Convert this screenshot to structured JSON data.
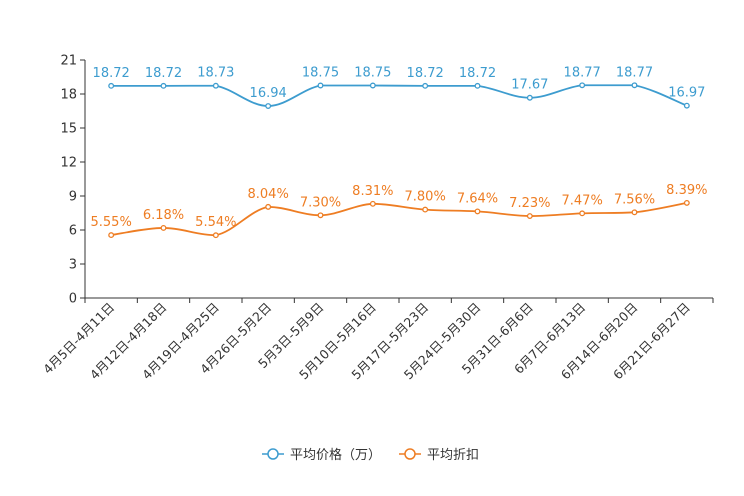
{
  "chart_data": {
    "type": "line",
    "title": "",
    "xlabel": "",
    "ylabel": "",
    "ylim": [
      0,
      21
    ],
    "yticks": [
      0,
      3,
      6,
      9,
      12,
      15,
      18,
      21
    ],
    "grid": false,
    "legend_position": "bottom",
    "categories": [
      "4月5日-4月11日",
      "4月12日-4月18日",
      "4月19日-4月25日",
      "4月26日-5月2日",
      "5月3日-5月9日",
      "5月10日-5月16日",
      "5月17日-5月23日",
      "5月24日-5月30日",
      "5月31日-6月6日",
      "6月7日-6月13日",
      "6月14日-6月20日",
      "6月21日-6月27日"
    ],
    "series": [
      {
        "name": "平均价格（万）",
        "color": "#3d9ccf",
        "values": [
          18.72,
          18.72,
          18.73,
          16.94,
          18.75,
          18.75,
          18.72,
          18.72,
          17.67,
          18.77,
          18.77,
          16.97
        ],
        "labels": [
          "18.72",
          "18.72",
          "18.73",
          "16.94",
          "18.75",
          "18.75",
          "18.72",
          "18.72",
          "17.67",
          "18.77",
          "18.77",
          "16.97"
        ]
      },
      {
        "name": "平均折扣",
        "color": "#ee7d23",
        "values": [
          5.55,
          6.18,
          5.54,
          8.04,
          7.3,
          8.31,
          7.8,
          7.64,
          7.23,
          7.47,
          7.56,
          8.39
        ],
        "labels": [
          "5.55%",
          "6.18%",
          "5.54%",
          "8.04%",
          "7.30%",
          "8.31%",
          "7.80%",
          "7.64%",
          "7.23%",
          "7.47%",
          "7.56%",
          "8.39%"
        ]
      }
    ]
  }
}
